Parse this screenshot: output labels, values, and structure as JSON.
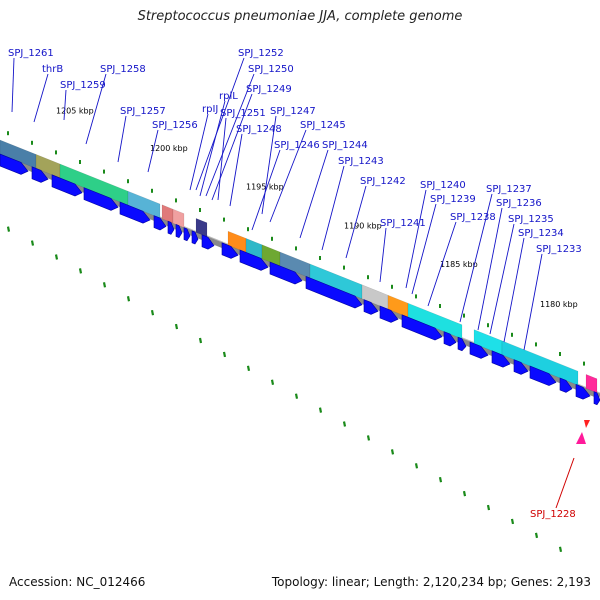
{
  "title": "Streptococcus pneumoniae JJA, complete genome",
  "footer": {
    "accession": "Accession: NC_012466",
    "topology": "Topology: linear; Length: 2,120,234 bp; Genes: 2,193"
  },
  "colors": {
    "label": "#1414c8",
    "highlight_label": "#d00000",
    "arrow": "#0a0aff",
    "tick": "#1a8a1a",
    "backbone": "#8a8a8a"
  },
  "kbp_ticks": [
    "1205 kbp",
    "1200 kbp",
    "1195 kbp",
    "1190 kbp",
    "1185 kbp",
    "1180 kbp"
  ],
  "genes": [
    "SPJ_1261",
    "thrB",
    "SPJ_1259",
    "SPJ_1258",
    "SPJ_1257",
    "SPJ_1256",
    "SPJ_1252",
    "SPJ_1250",
    "SPJ_1249",
    "rplL",
    "rpIJ",
    "SPJ_1251",
    "SPJ_1248",
    "SPJ_1247",
    "SPJ_1245",
    "SPJ_1246",
    "SPJ_1244",
    "SPJ_1243",
    "SPJ_1242",
    "SPJ_1241",
    "SPJ_1240",
    "SPJ_1239",
    "SPJ_1238",
    "SPJ_1237",
    "SPJ_1236",
    "SPJ_1235",
    "SPJ_1234",
    "SPJ_1233",
    "SPJ_1228"
  ]
}
